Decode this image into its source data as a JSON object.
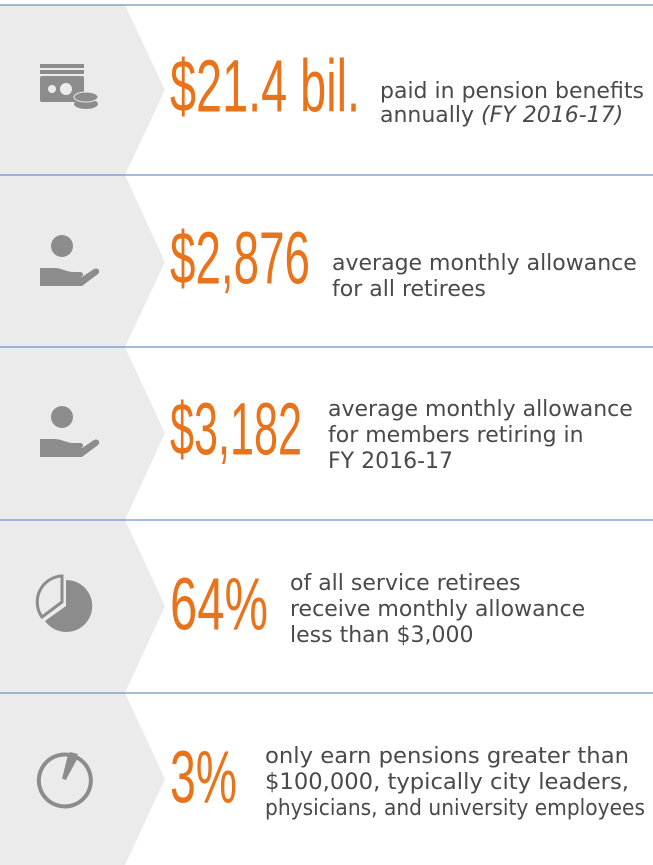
{
  "items": [
    {
      "figure": "$21.4 bil.",
      "lines": [
        "paid in pension benefits",
        "annually"
      ],
      "note": "(FY 2016-17)"
    },
    {
      "figure": "$2,876",
      "lines": [
        "average monthly allowance",
        "for all retirees"
      ]
    },
    {
      "figure": "$3,182",
      "lines": [
        "average monthly allowance",
        "for members retiring in",
        "FY 2016-17"
      ]
    },
    {
      "figure": "64%",
      "lines": [
        "of all service retirees",
        "receive monthly allowance",
        "less than $3,000"
      ]
    },
    {
      "figure": "3%",
      "lines": [
        "only earn pensions greater than",
        "$100,000, typically city leaders,",
        "physicians, and university employees"
      ]
    }
  ]
}
